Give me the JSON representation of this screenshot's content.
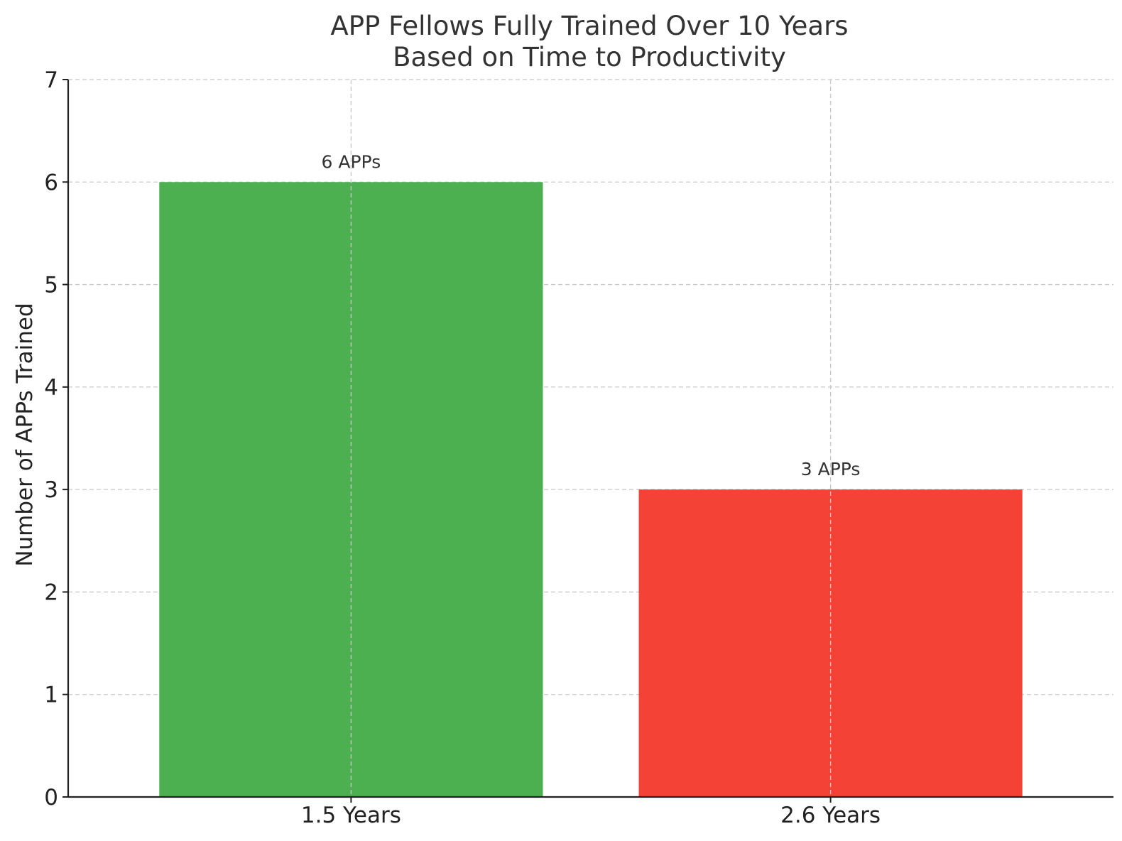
{
  "chart_data": {
    "type": "bar",
    "title_lines": [
      "APP Fellows Fully Trained Over 10 Years",
      "Based on Time to Productivity"
    ],
    "xlabel": "",
    "ylabel": "Number of APPs Trained",
    "categories": [
      "1.5 Years",
      "2.6 Years"
    ],
    "values": [
      6,
      3
    ],
    "bar_labels": [
      "6 APPs",
      "3 APPs"
    ],
    "bar_colors": [
      "#4caf50",
      "#f44336"
    ],
    "ylim": [
      0,
      7
    ],
    "yticks": [
      0,
      1,
      2,
      3,
      4,
      5,
      6,
      7
    ],
    "grid": true
  }
}
